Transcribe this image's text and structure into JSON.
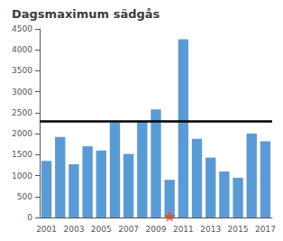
{
  "chart_data": {
    "type": "bar",
    "title": "Dagsmaximum sädgås",
    "categories": [
      "2001",
      null,
      "2003",
      null,
      "2005",
      null,
      "2007",
      null,
      "2009",
      null,
      "2011",
      null,
      "2013",
      null,
      "2015",
      null,
      "2017"
    ],
    "series": [
      {
        "type": "bar",
        "color": "#5b9bd5",
        "values": [
          1350,
          1920,
          1270,
          1700,
          1600,
          2270,
          1520,
          2300,
          2580,
          900,
          4250,
          1880,
          1430,
          1100,
          950,
          2000,
          1820
        ]
      },
      {
        "type": "scatter",
        "marker": "star",
        "color": "#ff4500",
        "values": [
          null,
          null,
          null,
          null,
          null,
          null,
          null,
          null,
          null,
          30,
          null,
          null,
          null,
          null,
          null,
          null,
          null
        ]
      }
    ],
    "reference_lines": [
      {
        "value": 2300,
        "color": "#000000"
      }
    ],
    "ylim": [
      0,
      4500
    ],
    "yticks": [
      0,
      500,
      1000,
      1500,
      2000,
      2500,
      3000,
      3500,
      4000,
      4500
    ],
    "grid": false
  }
}
